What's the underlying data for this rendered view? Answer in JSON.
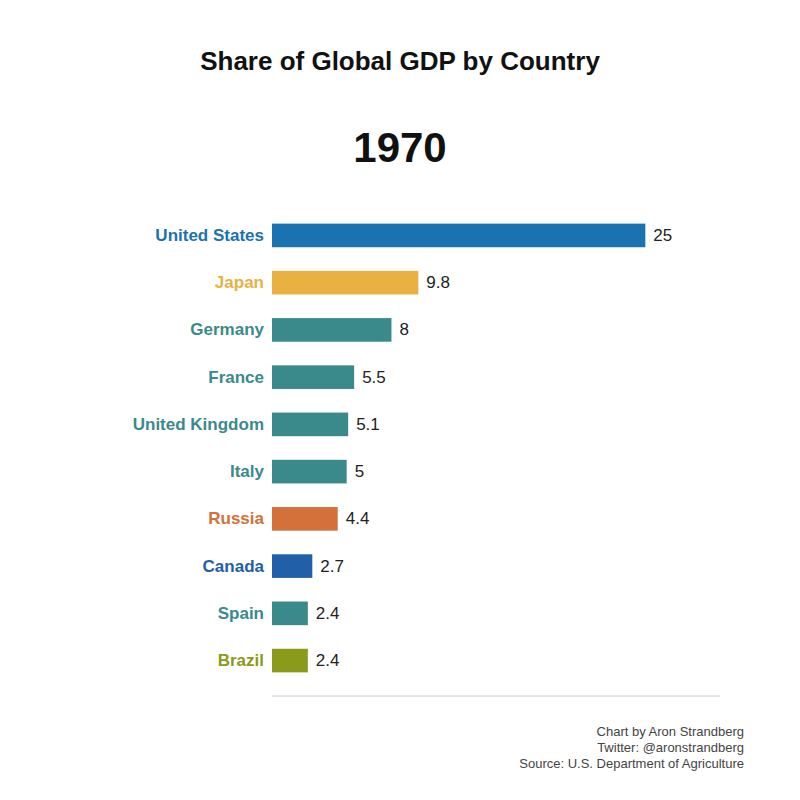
{
  "chart_data": {
    "type": "bar",
    "orientation": "horizontal",
    "title": "Share of Global GDP by Country",
    "subtitle": "1970",
    "categories": [
      "United States",
      "Japan",
      "Germany",
      "France",
      "United Kingdom",
      "Italy",
      "Russia",
      "Canada",
      "Spain",
      "Brazil"
    ],
    "values": [
      25,
      9.8,
      8,
      5.5,
      5.1,
      5,
      4.4,
      2.7,
      2.4,
      2.4
    ],
    "colors": [
      "#1a72b0",
      "#e8b142",
      "#3a8a8c",
      "#3a8a8c",
      "#3a8a8c",
      "#3a8a8c",
      "#d4703a",
      "#2160a8",
      "#3a8a8c",
      "#8a9a1a"
    ],
    "xlim": [
      0,
      30
    ],
    "data_labels": true,
    "tick_labels": "y",
    "grid": false,
    "annotations": [
      "Chart by Aron Strandberg",
      "Twitter: @aronstrandberg",
      "Source: U.S. Department of Agriculture"
    ]
  }
}
